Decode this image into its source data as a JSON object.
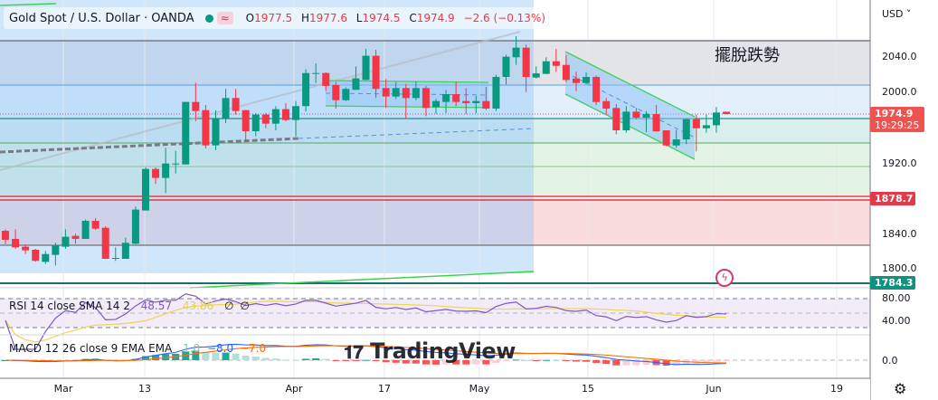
{
  "header": {
    "symbol_title": "Gold Spot / U.S. Dollar · OANDA",
    "status_icon": "green-dot-icon",
    "wave_icon": "≈",
    "open_label": "O",
    "open": "1977.5",
    "high_label": "H",
    "high": "1977.6",
    "low_label": "L",
    "low": "1974.5",
    "close_label": "C",
    "close": "1974.9",
    "change": "−2.6 (−0.13%)"
  },
  "price_axis": {
    "currency": "USD ˅",
    "ticks": [
      "2040.0",
      "2000.0",
      "1920.0",
      "1840.0",
      "1800.0"
    ],
    "current_price": "1974.9",
    "countdown": "19:29:25",
    "level_red": "1878.7",
    "level_green": "1784.3"
  },
  "annotation": "擺脫跌勢",
  "rsi": {
    "label": "RSI 14 close SMA 14 2",
    "value": "48.57",
    "sma_value": "43.86",
    "extra1": "∅",
    "extra2": "∅",
    "ticks": [
      "80.00",
      "40.00"
    ]
  },
  "macd": {
    "label": "MACD 12 26 close 9 EMA EMA",
    "hist_value": "1.0",
    "macd_value": "−8.0",
    "signal_value": "−7.0",
    "ticks": [
      "0.0"
    ]
  },
  "time_axis": [
    "Mar",
    "13",
    "Apr",
    "17",
    "May",
    "15",
    "Jun",
    "19"
  ],
  "watermark": "TradingView",
  "colors": {
    "up": "#089981",
    "down": "#f23645",
    "rsi": "#7e57c2",
    "rsi_sma": "#f0d454",
    "macd": "#2962ff",
    "signal": "#ff6d00"
  },
  "chart_data": {
    "type": "candlestick",
    "symbol": "XAUUSD",
    "ylim": [
      1775,
      2072
    ],
    "candles": [
      [
        1843.7,
        1845.4,
        1828.5,
        1833.6
      ],
      [
        1834.6,
        1845.4,
        1823.4,
        1825.1
      ],
      [
        1825.8,
        1828.5,
        1817.6,
        1821.7
      ],
      [
        1822.4,
        1823.4,
        1808.8,
        1809.9
      ],
      [
        1808.8,
        1821.0,
        1806.5,
        1817.6
      ],
      [
        1816.6,
        1830.2,
        1804.8,
        1827.8
      ],
      [
        1825.8,
        1845.4,
        1823.4,
        1837.0
      ],
      [
        1838.0,
        1840.4,
        1829.2,
        1834.6
      ],
      [
        1834.6,
        1856.3,
        1834.6,
        1854.9
      ],
      [
        1854.9,
        1858.0,
        1844.8,
        1846.1
      ],
      [
        1847.1,
        1848.8,
        1812.2,
        1812.2
      ],
      [
        1812.2,
        1825.1,
        1809.9,
        1813.2
      ],
      [
        1812.2,
        1836.0,
        1812.2,
        1830.2
      ],
      [
        1829.2,
        1870.9,
        1828.5,
        1867.5
      ],
      [
        1866.5,
        1914.9,
        1866.5,
        1913.2
      ],
      [
        1913.2,
        1914.9,
        1896.3,
        1903.1
      ],
      [
        1903.1,
        1937.0,
        1886.1,
        1919.3
      ],
      [
        1918.3,
        1933.6,
        1908.2,
        1919.3
      ],
      [
        1918.3,
        1988.5,
        1918.3,
        1988.5
      ],
      [
        1988.5,
        2009.9,
        1966.8,
        1978.3
      ],
      [
        1979.3,
        1985.1,
        1936.3,
        1939.7
      ],
      [
        1939.7,
        1979.3,
        1934.3,
        1970.2
      ],
      [
        1970.2,
        2003.1,
        1964.8,
        1992.9
      ],
      [
        1992.9,
        2003.1,
        1974.3,
        1978.3
      ],
      [
        1979.3,
        1979.3,
        1943.8,
        1955.6
      ],
      [
        1955.6,
        1976.0,
        1949.9,
        1974.3
      ],
      [
        1974.3,
        1976.0,
        1959.0,
        1964.1
      ],
      [
        1964.1,
        1983.8,
        1956.6,
        1980.4
      ],
      [
        1980.4,
        1987.1,
        1966.8,
        1968.2
      ],
      [
        1968.2,
        1989.5,
        1949.9,
        1983.8
      ],
      [
        1983.8,
        2025.1,
        1977.7,
        2021.0
      ],
      [
        2020.0,
        2031.9,
        2009.9,
        2021.0
      ],
      [
        2021.0,
        2021.7,
        2000.7,
        2006.5
      ],
      [
        2007.5,
        2010.9,
        1981.0,
        1990.5
      ],
      [
        1990.5,
        2004.8,
        1989.5,
        2003.1
      ],
      [
        2002.1,
        2028.5,
        2002.1,
        2015.0
      ],
      [
        2013.2,
        2048.2,
        2013.2,
        2040.4
      ],
      [
        2040.4,
        2047.1,
        1992.9,
        2003.1
      ],
      [
        2004.1,
        2014.3,
        1981.7,
        1994.6
      ],
      [
        1994.6,
        2010.9,
        1991.9,
        2004.1
      ],
      [
        2004.1,
        2008.8,
        1970.2,
        1992.9
      ],
      [
        1992.9,
        2011.6,
        1990.5,
        2004.1
      ],
      [
        2004.1,
        2006.5,
        1972.6,
        1981.7
      ],
      [
        1982.7,
        1991.9,
        1974.9,
        1989.5
      ],
      [
        1988.5,
        2002.1,
        1976.0,
        1997.3
      ],
      [
        1997.3,
        2010.9,
        1983.8,
        1988.5
      ],
      [
        1989.5,
        2004.1,
        1974.9,
        1987.1
      ],
      [
        1987.1,
        1995.3,
        1976.0,
        1989.5
      ],
      [
        1989.5,
        2005.4,
        1979.3,
        1981.0
      ],
      [
        1981.0,
        2019.0,
        1978.3,
        2016.6
      ],
      [
        2016.6,
        2041.4,
        2008.2,
        2039.3
      ],
      [
        2038.7,
        2062.4,
        2030.2,
        2049.5
      ],
      [
        2049.5,
        2052.9,
        1999.7,
        2016.6
      ],
      [
        2015.9,
        2028.4,
        2014.9,
        2020.6
      ],
      [
        2020.0,
        2038.6,
        2020.0,
        2034.2
      ],
      [
        2034.2,
        2048.1,
        2022.3,
        2029.1
      ],
      [
        2030.1,
        2041.3,
        2010.8,
        2013.2
      ],
      [
        2014.9,
        2022.3,
        2000.6,
        2009.8
      ],
      [
        2009.8,
        2021.7,
        2008.1,
        2016.6
      ],
      [
        2016.6,
        2018.3,
        1985.0,
        1988.4
      ],
      [
        1989.4,
        1992.8,
        1974.2,
        1981.0
      ],
      [
        1981.7,
        1986.1,
        1952.2,
        1956.6
      ],
      [
        1956.6,
        1983.7,
        1953.9,
        1977.6
      ],
      [
        1977.6,
        1981.7,
        1969.1,
        1970.8
      ],
      [
        1970.8,
        1978.3,
        1954.5,
        1974.9
      ],
      [
        1974.9,
        1985.0,
        1955.5,
        1955.5
      ],
      [
        1956.6,
        1956.6,
        1938.6,
        1939.6
      ],
      [
        1939.6,
        1957.2,
        1936.9,
        1946.4
      ],
      [
        1946.4,
        1969.1,
        1941.0,
        1969.1
      ],
      [
        1969.1,
        1974.2,
        1932.8,
        1958.9
      ],
      [
        1958.9,
        1974.2,
        1953.9,
        1962.3
      ],
      [
        1962.3,
        1982.7,
        1953.9,
        1976.6
      ],
      [
        1977.5,
        1977.6,
        1974.5,
        1974.9
      ]
    ],
    "levels": [
      2055,
      2006,
      1968,
      1940,
      1914,
      1881,
      1876,
      1827,
      1784.3
    ]
  }
}
